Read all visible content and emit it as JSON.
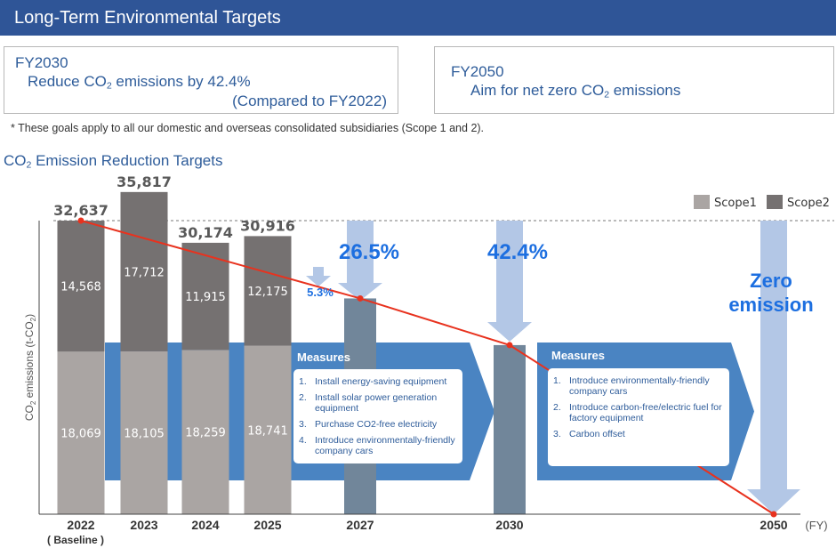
{
  "header": {
    "title": "Long-Term Environmental Targets"
  },
  "target_fy2030": {
    "label": "FY2030",
    "line_prefix": "Reduce CO",
    "line_sub": "2",
    "line_suffix": " emissions by 42.4%",
    "comparison": "(Compared to FY2022)"
  },
  "target_fy2050": {
    "label": "FY2050",
    "line_prefix": "Aim for net zero CO",
    "line_sub": "2",
    "line_suffix": " emissions"
  },
  "note": "* These goals apply to all our domestic and overseas consolidated subsidiaries (Scope 1 and 2).",
  "section": {
    "title_prefix": "CO",
    "title_sub": "2",
    "title_suffix": " Emission Reduction Targets"
  },
  "chart_data": {
    "type": "bar",
    "stacked": true,
    "title": "",
    "ylabel": "CO2 emissions (t-CO2)",
    "xlabel": "(FY)",
    "categories": [
      "2022",
      "2023",
      "2024",
      "2025",
      "2027",
      "2030",
      "2050"
    ],
    "category_sublabels": {
      "2022": "( Baseline )"
    },
    "series": [
      {
        "name": "Scope1",
        "values": [
          18069,
          18105,
          18259,
          18741,
          null,
          null,
          null
        ],
        "color": "#aaa5a3"
      },
      {
        "name": "Scope2",
        "values": [
          14568,
          17712,
          11915,
          12175,
          null,
          null,
          null
        ],
        "color": "#757171"
      }
    ],
    "totals": [
      32637,
      35817,
      30174,
      30916,
      null,
      null,
      null
    ],
    "target_bars": [
      {
        "year": "2027",
        "value": 23988,
        "color": "#71869a"
      },
      {
        "year": "2030",
        "value": 18799,
        "color": "#71869a"
      }
    ],
    "target_line": {
      "x": [
        "2022",
        "2027",
        "2030",
        "2050"
      ],
      "values": [
        32637,
        23988,
        18799,
        0
      ],
      "color": "#e8321e"
    },
    "reductions": [
      {
        "year": "2025",
        "label": "5.3%"
      },
      {
        "year": "2027",
        "label": "26.5%"
      },
      {
        "year": "2030",
        "label": "42.4%"
      },
      {
        "year": "2050",
        "label_lines": [
          "Zero",
          "emission"
        ]
      }
    ],
    "legend_position": "top-right",
    "reference_line": "dashed at 2022 baseline",
    "colors": {
      "accent": "#2f5597",
      "arrow_band": "#4a84c2",
      "reduction_arrow": "#b3c7e6",
      "reduction_text": "#1d6fe0"
    }
  },
  "measures": [
    {
      "title": "Measures",
      "items": [
        {
          "num": "1.",
          "text": "Install energy-saving equipment"
        },
        {
          "num": "2.",
          "text": "Install solar power generation equipment"
        },
        {
          "num": "3.",
          "text": "Purchase CO2-free electricity"
        },
        {
          "num": "4.",
          "text": "Introduce environmentally-friendly company cars"
        }
      ]
    },
    {
      "title": "Measures",
      "items": [
        {
          "num": "1.",
          "text": "Introduce environmentally-friendly company cars"
        },
        {
          "num": "2.",
          "text": "Introduce carbon-free/electric fuel for factory equipment"
        },
        {
          "num": "3.",
          "text": "Carbon offset"
        }
      ]
    }
  ]
}
